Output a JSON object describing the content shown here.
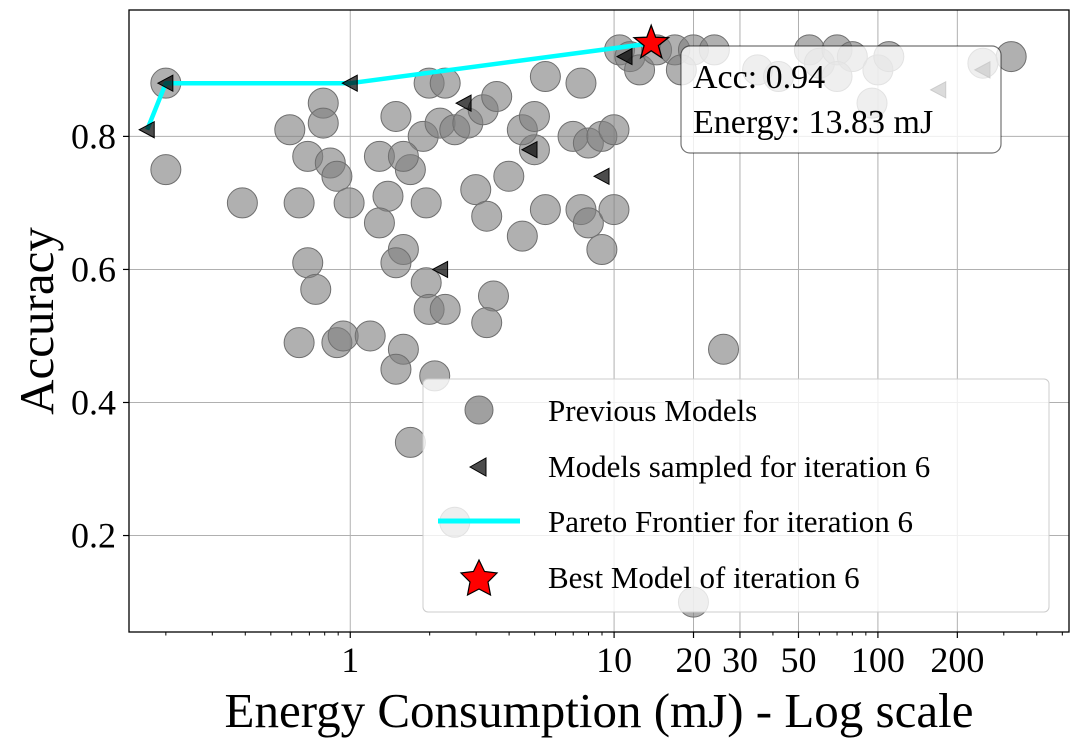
{
  "chart_data": {
    "type": "scatter",
    "xlabel": "Energy Consumption (mJ) - Log scale",
    "ylabel": "Accuracy",
    "xscale": "log",
    "xlim": [
      0.145,
      530
    ],
    "ylim": [
      0.055,
      0.99
    ],
    "grid": true,
    "x_ticks": [
      {
        "value": 1,
        "label": "1"
      },
      {
        "value": 10,
        "label": "10"
      },
      {
        "value": 20,
        "label": "20"
      },
      {
        "value": 30,
        "label": "30"
      },
      {
        "value": 50,
        "label": "50"
      },
      {
        "value": 100,
        "label": "100"
      },
      {
        "value": 200,
        "label": "200"
      }
    ],
    "y_ticks": [
      {
        "value": 0.2,
        "label": "0.2"
      },
      {
        "value": 0.4,
        "label": "0.4"
      },
      {
        "value": 0.6,
        "label": "0.6"
      },
      {
        "value": 0.8,
        "label": "0.8"
      }
    ],
    "legend": {
      "position": "lower-right",
      "entries": [
        {
          "label": "Previous Models",
          "marker": "circle",
          "color": "#808080"
        },
        {
          "label": "Models sampled for iteration 6",
          "marker": "triangle-left",
          "color": "#000000"
        },
        {
          "label": "Pareto Frontier for iteration 6",
          "marker": "line",
          "color": "#00ffff"
        },
        {
          "label": "Best Model of iteration 6",
          "marker": "star",
          "color": "#ff0000"
        }
      ]
    },
    "annotation": {
      "lines": [
        "Acc: 0.94",
        "Energy: 13.83 mJ"
      ],
      "position": "top-right"
    },
    "series": [
      {
        "name": "Previous Models",
        "marker": "circle",
        "color": "#808080",
        "points": [
          [
            0.2,
            0.88
          ],
          [
            0.2,
            0.75
          ],
          [
            0.39,
            0.7
          ],
          [
            0.59,
            0.81
          ],
          [
            0.69,
            0.77
          ],
          [
            0.79,
            0.85
          ],
          [
            0.79,
            0.82
          ],
          [
            0.84,
            0.76
          ],
          [
            0.89,
            0.74
          ],
          [
            0.99,
            0.7
          ],
          [
            0.64,
            0.7
          ],
          [
            0.69,
            0.61
          ],
          [
            0.74,
            0.57
          ],
          [
            0.64,
            0.49
          ],
          [
            0.89,
            0.49
          ],
          [
            0.94,
            0.5
          ],
          [
            1.19,
            0.5
          ],
          [
            1.29,
            0.77
          ],
          [
            1.39,
            0.71
          ],
          [
            1.29,
            0.67
          ],
          [
            1.59,
            0.63
          ],
          [
            1.49,
            0.61
          ],
          [
            1.69,
            0.75
          ],
          [
            1.59,
            0.48
          ],
          [
            1.49,
            0.45
          ],
          [
            1.94,
            0.7
          ],
          [
            1.94,
            0.58
          ],
          [
            1.99,
            0.54
          ],
          [
            2.29,
            0.54
          ],
          [
            2.09,
            0.44
          ],
          [
            1.89,
            0.8
          ],
          [
            2.19,
            0.82
          ],
          [
            2.49,
            0.81
          ],
          [
            2.79,
            0.82
          ],
          [
            3.19,
            0.84
          ],
          [
            3.59,
            0.86
          ],
          [
            1.99,
            0.88
          ],
          [
            2.29,
            0.88
          ],
          [
            1.49,
            0.83
          ],
          [
            1.59,
            0.77
          ],
          [
            2.99,
            0.72
          ],
          [
            3.29,
            0.68
          ],
          [
            3.99,
            0.74
          ],
          [
            4.49,
            0.65
          ],
          [
            3.49,
            0.56
          ],
          [
            3.29,
            0.52
          ],
          [
            4.99,
            0.78
          ],
          [
            5.49,
            0.69
          ],
          [
            4.49,
            0.81
          ],
          [
            4.99,
            0.83
          ],
          [
            5.49,
            0.89
          ],
          [
            7.49,
            0.88
          ],
          [
            6.99,
            0.8
          ],
          [
            7.99,
            0.79
          ],
          [
            8.99,
            0.8
          ],
          [
            7.49,
            0.69
          ],
          [
            7.99,
            0.67
          ],
          [
            8.99,
            0.63
          ],
          [
            9.99,
            0.69
          ],
          [
            9.99,
            0.81
          ],
          [
            10.49,
            0.93
          ],
          [
            11.49,
            0.92
          ],
          [
            12.49,
            0.9
          ],
          [
            14.49,
            0.93
          ],
          [
            16.99,
            0.93
          ],
          [
            19.99,
            0.93
          ],
          [
            23.99,
            0.93
          ],
          [
            17.99,
            0.9
          ],
          [
            34.99,
            0.9
          ],
          [
            41.99,
            0.89
          ],
          [
            54.99,
            0.93
          ],
          [
            59.99,
            0.91
          ],
          [
            69.99,
            0.93
          ],
          [
            79.99,
            0.92
          ],
          [
            69.99,
            0.89
          ],
          [
            99.99,
            0.9
          ],
          [
            109.99,
            0.92
          ],
          [
            94.99,
            0.85
          ],
          [
            249.99,
            0.91
          ],
          [
            319.99,
            0.92
          ],
          [
            25.99,
            0.48
          ],
          [
            1.69,
            0.34
          ],
          [
            2.49,
            0.22
          ],
          [
            19.99,
            0.1
          ]
        ]
      },
      {
        "name": "Models sampled for iteration 6",
        "marker": "triangle-left",
        "color": "#000000",
        "points": [
          [
            0.17,
            0.81
          ],
          [
            0.2,
            0.88
          ],
          [
            1,
            0.88
          ],
          [
            2.2,
            0.6
          ],
          [
            2.7,
            0.85
          ],
          [
            4.8,
            0.78
          ],
          [
            9.0,
            0.74
          ],
          [
            11.0,
            0.92
          ],
          [
            170,
            0.87
          ],
          [
            250,
            0.9
          ]
        ]
      },
      {
        "name": "Pareto Frontier for iteration 6",
        "marker": "line",
        "color": "#00ffff",
        "points": [
          [
            0.17,
            0.81
          ],
          [
            0.2,
            0.88
          ],
          [
            1,
            0.88
          ],
          [
            13.83,
            0.94
          ]
        ]
      },
      {
        "name": "Best Model of iteration 6",
        "marker": "star",
        "color": "#ff0000",
        "points": [
          [
            13.83,
            0.94
          ]
        ]
      }
    ]
  }
}
